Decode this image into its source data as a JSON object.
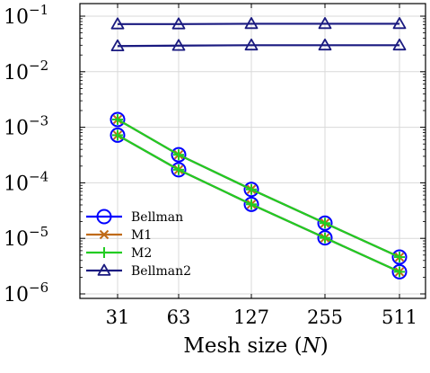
{
  "chart_data": {
    "type": "line",
    "xlabel": "Mesh size (",
    "xlabel_var": "N",
    "xlabel_close": ")",
    "x_scale": "log",
    "y_scale": "log",
    "categories": [
      31,
      63,
      127,
      255,
      511
    ],
    "x_tick_labels": [
      "31",
      "63",
      "127",
      "255",
      "511"
    ],
    "ylim": [
      1e-06,
      0.1
    ],
    "y_ticks": [
      {
        "value": 0.1,
        "base": "10",
        "exp": "−1"
      },
      {
        "value": 0.01,
        "base": "10",
        "exp": "−2"
      },
      {
        "value": 0.001,
        "base": "10",
        "exp": "−3"
      },
      {
        "value": 0.0001,
        "base": "10",
        "exp": "−4"
      },
      {
        "value": 1e-05,
        "base": "10",
        "exp": "−5"
      },
      {
        "value": 1e-06,
        "base": "10",
        "exp": "−6"
      }
    ],
    "grid": true,
    "legend_position": "bottom-left",
    "series": [
      {
        "name": "Bellman",
        "marker": "circle",
        "color": "#0000ff",
        "values": [
          0.00138,
          0.00032,
          7.6e-05,
          1.88e-05,
          4.6e-06
        ]
      },
      {
        "name": "Bellman",
        "marker": "circle",
        "color": "#0000ff",
        "values": [
          0.00072,
          0.000172,
          4.1e-05,
          1.02e-05,
          2.5e-06
        ]
      },
      {
        "name": "M1",
        "marker": "x",
        "color": "#bf6a18",
        "values": [
          0.00138,
          0.00032,
          7.6e-05,
          1.88e-05,
          4.6e-06
        ]
      },
      {
        "name": "M1",
        "marker": "x",
        "color": "#bf6a18",
        "values": [
          0.00072,
          0.000172,
          4.1e-05,
          1.02e-05,
          2.5e-06
        ]
      },
      {
        "name": "M2",
        "marker": "plus",
        "color": "#22cc22",
        "values": [
          0.00138,
          0.00032,
          7.6e-05,
          1.88e-05,
          4.6e-06
        ]
      },
      {
        "name": "M2",
        "marker": "plus",
        "color": "#22cc22",
        "values": [
          0.00072,
          0.000172,
          4.1e-05,
          1.02e-05,
          2.5e-06
        ]
      },
      {
        "name": "Bellman2",
        "marker": "triangle",
        "color": "#1a1a80",
        "values": [
          0.072,
          0.072,
          0.073,
          0.073,
          0.073
        ]
      },
      {
        "name": "Bellman2",
        "marker": "triangle",
        "color": "#1a1a80",
        "values": [
          0.029,
          0.0295,
          0.03,
          0.03,
          0.03
        ]
      }
    ],
    "legend": [
      "Bellman",
      "M1",
      "M2",
      "Bellman2"
    ]
  }
}
